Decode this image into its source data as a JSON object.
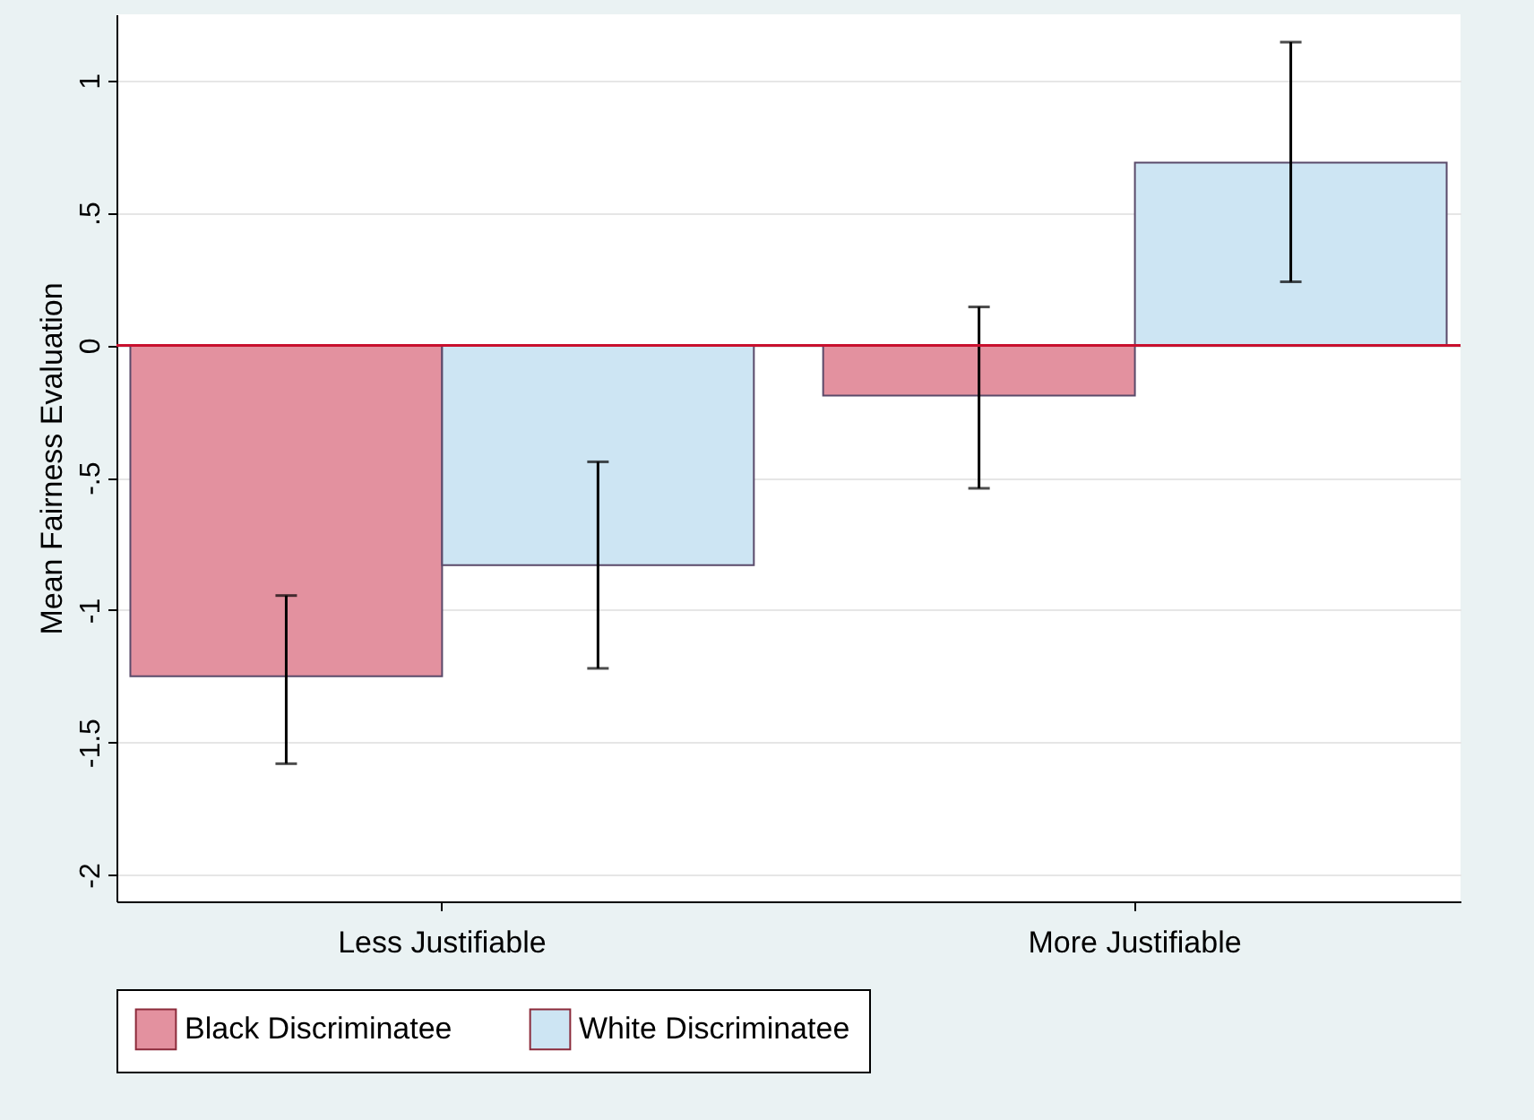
{
  "chart_data": {
    "type": "bar",
    "ylabel": "Mean Fairness Evaluation",
    "categories": [
      "Less Justifiable",
      "More Justifiable"
    ],
    "series": [
      {
        "name": "Black Discriminatee",
        "color": "#e3919f",
        "values": [
          -1.25,
          -0.19
        ],
        "errors": [
          [
            -1.58,
            -0.945
          ],
          [
            -0.54,
            0.145
          ]
        ]
      },
      {
        "name": "White Discriminatee",
        "color": "#cde5f3",
        "values": [
          -0.83,
          0.69
        ],
        "errors": [
          [
            -1.22,
            -0.44
          ],
          [
            0.24,
            1.145
          ]
        ]
      }
    ],
    "ylim": [
      -2.1,
      1.25
    ],
    "yticks": [
      {
        "value": -2,
        "label": "-2"
      },
      {
        "value": -1.5,
        "label": "-1.5"
      },
      {
        "value": -1,
        "label": "-1"
      },
      {
        "value": -0.5,
        "label": "-.5"
      },
      {
        "value": 0,
        "label": "0"
      },
      {
        "value": 0.5,
        "label": ".5"
      },
      {
        "value": 1,
        "label": "1"
      }
    ],
    "ref_lines": [
      {
        "axis": "y",
        "value": 0,
        "color": "#c8102e"
      }
    ],
    "grid": "y",
    "legend": "bottom"
  }
}
